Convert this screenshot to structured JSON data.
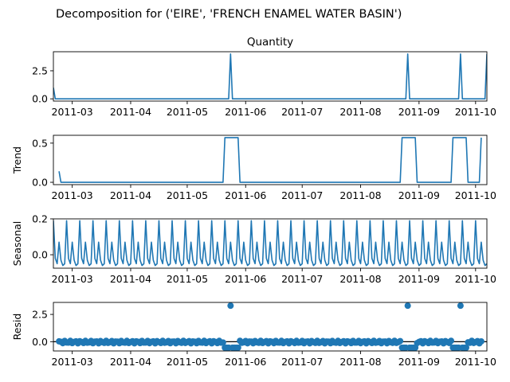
{
  "chart_data": {
    "type": "line",
    "suptitle": "Decomposition for ('EIRE', 'FRENCH ENAMEL WATER BASIN')",
    "x_tick_labels": [
      "2011-03",
      "2011-04",
      "2011-05",
      "2011-06",
      "2011-07",
      "2011-08",
      "2011-09",
      "2011-10"
    ],
    "x_tick_dates": [
      "2011-03-01",
      "2011-04-01",
      "2011-05-01",
      "2011-06-01",
      "2011-07-01",
      "2011-08-01",
      "2011-09-01",
      "2011-10-01"
    ],
    "xlim": [
      "2011-02-19",
      "2011-10-07"
    ],
    "spikes": [
      {
        "date": "2011-05-24",
        "quantity": 4
      },
      {
        "date": "2011-08-26",
        "quantity": 4
      },
      {
        "date": "2011-09-23",
        "quantity": 4
      },
      {
        "date": "2011-10-07",
        "quantity": 4
      }
    ],
    "panels": [
      {
        "key": "observed",
        "title": "Quantity",
        "ylabel": "",
        "ylim": [
          -0.2,
          4.2
        ],
        "yticks": [
          0.0,
          2.5
        ],
        "ytick_labels": [
          "0.0",
          "2.5"
        ],
        "style": "line"
      },
      {
        "key": "trend",
        "title": "",
        "ylabel": "Trend",
        "ylim": [
          -0.03,
          0.6
        ],
        "yticks": [
          0.0,
          0.5
        ],
        "ytick_labels": [
          "0.0",
          "0.5"
        ],
        "style": "line"
      },
      {
        "key": "seasonal",
        "title": "",
        "ylabel": "Seasonal",
        "ylim": [
          -0.075,
          0.2
        ],
        "yticks": [
          0.0,
          0.2
        ],
        "ytick_labels": [
          "0.0",
          "0.2"
        ],
        "style": "line"
      },
      {
        "key": "resid",
        "title": "",
        "ylabel": "Resid",
        "ylim": [
          -0.85,
          3.6
        ],
        "yticks": [
          0.0,
          2.5
        ],
        "ytick_labels": [
          "0.0",
          "2.5"
        ],
        "style": "scatter"
      }
    ],
    "observed": {
      "start": "2011-02-19",
      "baseline": 0.0,
      "initial_value": 1.0,
      "spike_value": 4.0
    },
    "trend": {
      "start": "2011-02-22",
      "end": "2011-10-04",
      "initial_value": 0.14,
      "baseline": 0.0,
      "plateau_value": 0.57,
      "plateau_ranges": [
        [
          "2011-05-21",
          "2011-05-28"
        ],
        [
          "2011-08-23",
          "2011-08-30"
        ],
        [
          "2011-09-19",
          "2011-09-26"
        ]
      ],
      "final_value": 0.57
    },
    "seasonal": {
      "period_days": 7,
      "weekly_pattern": [
        0.19,
        -0.02,
        -0.05,
        0.07,
        -0.03,
        -0.06,
        -0.05
      ]
    },
    "resid": {
      "baseline_range": [
        -0.15,
        0.08
      ],
      "spike_value": 3.3,
      "plateau_value": -0.55
    },
    "line_color": "#1f77b4",
    "grid": false,
    "legend": "none"
  }
}
